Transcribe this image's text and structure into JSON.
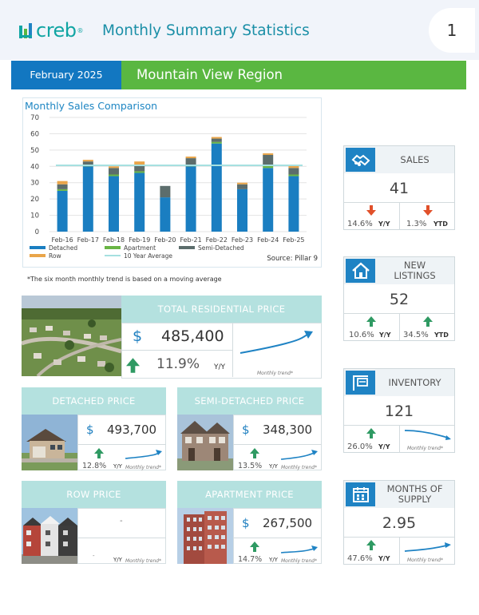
{
  "header": {
    "logo_text": "creb",
    "logo_reg": "®",
    "title": "Monthly Summary Statistics",
    "page_number": "1"
  },
  "banner": {
    "date": "February 2025",
    "region": "Mountain View Region"
  },
  "chart_data": {
    "type": "bar",
    "title": "Monthly Sales Comparison",
    "categories": [
      "Feb-16",
      "Feb-17",
      "Feb-18",
      "Feb-19",
      "Feb-20",
      "Feb-21",
      "Feb-22",
      "Feb-23",
      "Feb-24",
      "Feb-25"
    ],
    "series": [
      {
        "name": "Detached",
        "color": "#1a7ec1",
        "values": [
          25,
          40,
          34,
          36,
          21,
          40,
          54,
          26,
          39,
          34
        ]
      },
      {
        "name": "Apartment",
        "color": "#6ab545",
        "values": [
          1,
          1,
          1,
          1,
          0,
          1,
          1,
          0,
          2,
          1
        ]
      },
      {
        "name": "Semi-Detached",
        "color": "#5c6d6c",
        "values": [
          3,
          2,
          4,
          4,
          7,
          4,
          2,
          3,
          6,
          4
        ]
      },
      {
        "name": "Row",
        "color": "#e9a54a",
        "values": [
          2,
          1,
          1,
          2,
          0,
          1,
          1,
          1,
          1,
          2
        ]
      }
    ],
    "ten_year_average": {
      "name": "10 Year Average",
      "color": "#a6e0e0",
      "value": 40.6
    },
    "yticks": [
      0,
      10,
      20,
      30,
      40,
      50,
      60,
      70
    ],
    "ylim": [
      0,
      70
    ],
    "grid": true,
    "legend_position": "bottom",
    "source": "Source: Pillar 9"
  },
  "trend_note": "*The six month monthly trend is based on a moving average",
  "cards": {
    "sales": {
      "label": "SALES",
      "value": "41",
      "yy_pct": "14.6%",
      "yy_label": "Y/Y",
      "ytd_pct": "1.3%",
      "ytd_label": "YTD",
      "icon": "handshake-icon"
    },
    "new_listings": {
      "label": "NEW LISTINGS",
      "value": "52",
      "yy_pct": "10.6%",
      "yy_label": "Y/Y",
      "ytd_pct": "34.5%",
      "ytd_label": "YTD",
      "icon": "house-icon"
    },
    "inventory": {
      "label": "INVENTORY",
      "value": "121",
      "yy_pct": "26.0%",
      "yy_label": "Y/Y",
      "trend_label": "Monthly trend*",
      "icon": "for-sale-sign-icon"
    },
    "months_supply": {
      "label": "MONTHS OF SUPPLY",
      "value": "2.95",
      "yy_pct": "47.6%",
      "yy_label": "Y/Y",
      "trend_label": "Monthly trend*",
      "icon": "calendar-icon"
    }
  },
  "total_price": {
    "label": "TOTAL RESIDENTIAL PRICE",
    "dollar": "$",
    "value": "485,400",
    "yy_pct": "11.9%",
    "yy_label": "Y/Y",
    "trend_label": "Monthly trend*"
  },
  "detached": {
    "label": "DETACHED PRICE",
    "dollar": "$",
    "value": "493,700",
    "yy_pct": "12.8%",
    "yy_label": "Y/Y",
    "trend_label": "Monthly trend*"
  },
  "semi": {
    "label": "SEMI-DETACHED PRICE",
    "dollar": "$",
    "value": "348,300",
    "yy_pct": "13.5%",
    "yy_label": "Y/Y",
    "trend_label": "Monthly trend*"
  },
  "row": {
    "label": "ROW PRICE",
    "value": "-",
    "yy_pct": "-",
    "yy_label": "Y/Y",
    "trend_label": "Monthly trend*"
  },
  "apartment": {
    "label": "APARTMENT PRICE",
    "dollar": "$",
    "value": "267,500",
    "yy_pct": "14.7%",
    "yy_label": "Y/Y",
    "trend_label": "Monthly trend*"
  },
  "colors": {
    "blue": "#1f83c4",
    "green": "#5ab741",
    "teal": "#11a5a3",
    "panel_teal": "#b4e1df",
    "down_arrow": "#e1502a",
    "up_arrow": "#2f9a63"
  }
}
